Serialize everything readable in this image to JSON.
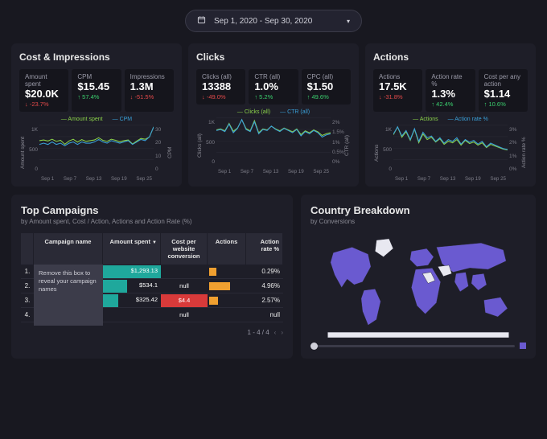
{
  "colors": {
    "bg": "#181820",
    "panel": "#1e1e28",
    "metric_bg": "#15151c",
    "text": "#e8e8e8",
    "muted": "#8a8a94",
    "series_a": "#8bd14a",
    "series_b": "#3aa0d8",
    "up": "#3bcf6e",
    "down": "#e24a4a",
    "map_fill": "#6a5ad0",
    "map_light": "#e8e8f0",
    "map_stroke": "#2a2a36",
    "orange": "#f0a030",
    "red": "#d83a3a",
    "teal": "#1fa89c"
  },
  "date_range": "Sep 1, 2020 - Sep 30, 2020",
  "panels": [
    {
      "title": "Cost & Impressions",
      "metrics": [
        {
          "label": "Amount spent",
          "value": "$20.0K",
          "delta": "-23.7%",
          "dir": "down"
        },
        {
          "label": "CPM",
          "value": "$15.45",
          "delta": "57.4%",
          "dir": "up"
        },
        {
          "label": "Impressions",
          "value": "1.3M",
          "delta": "-51.5%",
          "dir": "down"
        }
      ],
      "legend": [
        "Amount spent",
        "CPM"
      ],
      "ylabel_left": "Amount spent",
      "ylabel_right": "CPM",
      "yticks_left": [
        "1K",
        "500",
        "0"
      ],
      "yticks_right": [
        "30",
        "20",
        "10",
        "0"
      ],
      "xticks": [
        "Sep 1",
        "Sep 7",
        "Sep 13",
        "Sep 19",
        "Sep 25"
      ],
      "series_a": [
        520,
        540,
        510,
        560,
        500,
        530,
        420,
        510,
        560,
        480,
        550,
        500,
        520,
        540,
        600,
        530,
        500,
        560,
        530,
        490,
        520,
        540,
        430,
        510,
        580,
        560,
        620,
        900
      ],
      "series_b": [
        12,
        13,
        12,
        14,
        12,
        13,
        11,
        13,
        14,
        12,
        14,
        13,
        13,
        14,
        16,
        14,
        13,
        15,
        14,
        13,
        14,
        15,
        12,
        14,
        16,
        15,
        18,
        26
      ]
    },
    {
      "title": "Clicks",
      "metrics": [
        {
          "label": "Clicks (all)",
          "value": "13388",
          "delta": "-49.0%",
          "dir": "down"
        },
        {
          "label": "CTR (all)",
          "value": "1.0%",
          "delta": "5.2%",
          "dir": "up"
        },
        {
          "label": "CPC (all)",
          "value": "$1.50",
          "delta": "49.6%",
          "dir": "up"
        }
      ],
      "legend": [
        "Clicks (all)",
        "CTR (all)"
      ],
      "ylabel_left": "Clicks (all)",
      "ylabel_right": "CTR (all)",
      "yticks_left": [
        "1K",
        "500",
        "0"
      ],
      "yticks_right": [
        "2%",
        "1.5%",
        "1%",
        "0.5%",
        "0%"
      ],
      "xticks": [
        "Sep 1",
        "Sep 7",
        "Sep 13",
        "Sep 19",
        "Sep 25"
      ],
      "series_a": [
        480,
        500,
        460,
        620,
        450,
        520,
        700,
        510,
        460,
        680,
        420,
        500,
        480,
        560,
        500,
        460,
        520,
        480,
        440,
        500,
        380,
        460,
        420,
        480,
        440,
        360,
        400,
        420
      ],
      "series_b": [
        1.0,
        1.05,
        0.95,
        1.3,
        0.9,
        1.1,
        1.5,
        1.05,
        0.95,
        1.4,
        0.85,
        1.05,
        1.0,
        1.2,
        1.05,
        0.95,
        1.1,
        1.0,
        0.9,
        1.05,
        0.75,
        0.95,
        0.85,
        1.0,
        0.9,
        0.7,
        0.8,
        0.85
      ]
    },
    {
      "title": "Actions",
      "metrics": [
        {
          "label": "Actions",
          "value": "17.5K",
          "delta": "-31.8%",
          "dir": "down"
        },
        {
          "label": "Action rate %",
          "value": "1.3%",
          "delta": "42.4%",
          "dir": "up"
        },
        {
          "label": "Cost per any action",
          "value": "$1.14",
          "delta": "10.6%",
          "dir": "up"
        }
      ],
      "legend": [
        "Actions",
        "Action rate %"
      ],
      "ylabel_left": "Actions",
      "ylabel_right": "Action rate %",
      "yticks_left": [
        "1K",
        "500",
        "0"
      ],
      "yticks_right": [
        "3%",
        "2%",
        "1%",
        "0%"
      ],
      "xticks": [
        "Sep 1",
        "Sep 7",
        "Sep 13",
        "Sep 19",
        "Sep 25"
      ],
      "series_a": [
        620,
        820,
        560,
        700,
        480,
        760,
        420,
        640,
        500,
        560,
        440,
        520,
        380,
        460,
        420,
        500,
        360,
        480,
        400,
        440,
        360,
        420,
        300,
        380,
        340,
        300,
        260,
        240
      ],
      "series_b": [
        1.4,
        1.8,
        1.3,
        1.6,
        1.1,
        1.7,
        1.0,
        1.5,
        1.2,
        1.3,
        1.0,
        1.2,
        0.9,
        1.1,
        1.0,
        1.2,
        0.85,
        1.1,
        0.95,
        1.05,
        0.85,
        1.0,
        0.7,
        0.9,
        0.8,
        0.7,
        0.6,
        0.55
      ]
    }
  ],
  "campaigns": {
    "title": "Top Campaigns",
    "subtitle": "by Amount spent, Cost / Action, Actions and Action Rate (%)",
    "headers": [
      "Campaign name",
      "Amount spent",
      "Cost per website conversion",
      "Actions",
      "Action rate %"
    ],
    "sort_col": 1,
    "rows": [
      {
        "idx": "1.",
        "amount": "$1,293.13",
        "amount_pct": 100,
        "amount_color": "#1fa89c",
        "cost": "",
        "cost_color": "",
        "actions_pct": 18,
        "rate": "0.29%"
      },
      {
        "idx": "2.",
        "amount": "$534.1",
        "amount_pct": 42,
        "amount_color": "#1fa89c",
        "cost": "null",
        "cost_color": "",
        "actions_pct": 55,
        "rate": "4.96%"
      },
      {
        "idx": "3.",
        "amount": "$325.42",
        "amount_pct": 26,
        "amount_color": "#1fa89c",
        "cost": "$4.4",
        "cost_color": "#d83a3a",
        "actions_pct": 22,
        "rate": "2.57%"
      },
      {
        "idx": "4.",
        "amount": "",
        "amount_pct": 0,
        "amount_color": "",
        "cost": "null",
        "cost_color": "",
        "actions_pct": 0,
        "rate": "null"
      }
    ],
    "overlay": "Remove this box to reveal your campaign names",
    "pager": "1 - 4 / 4"
  },
  "country": {
    "title": "Country Breakdown",
    "subtitle": "by Conversions"
  }
}
